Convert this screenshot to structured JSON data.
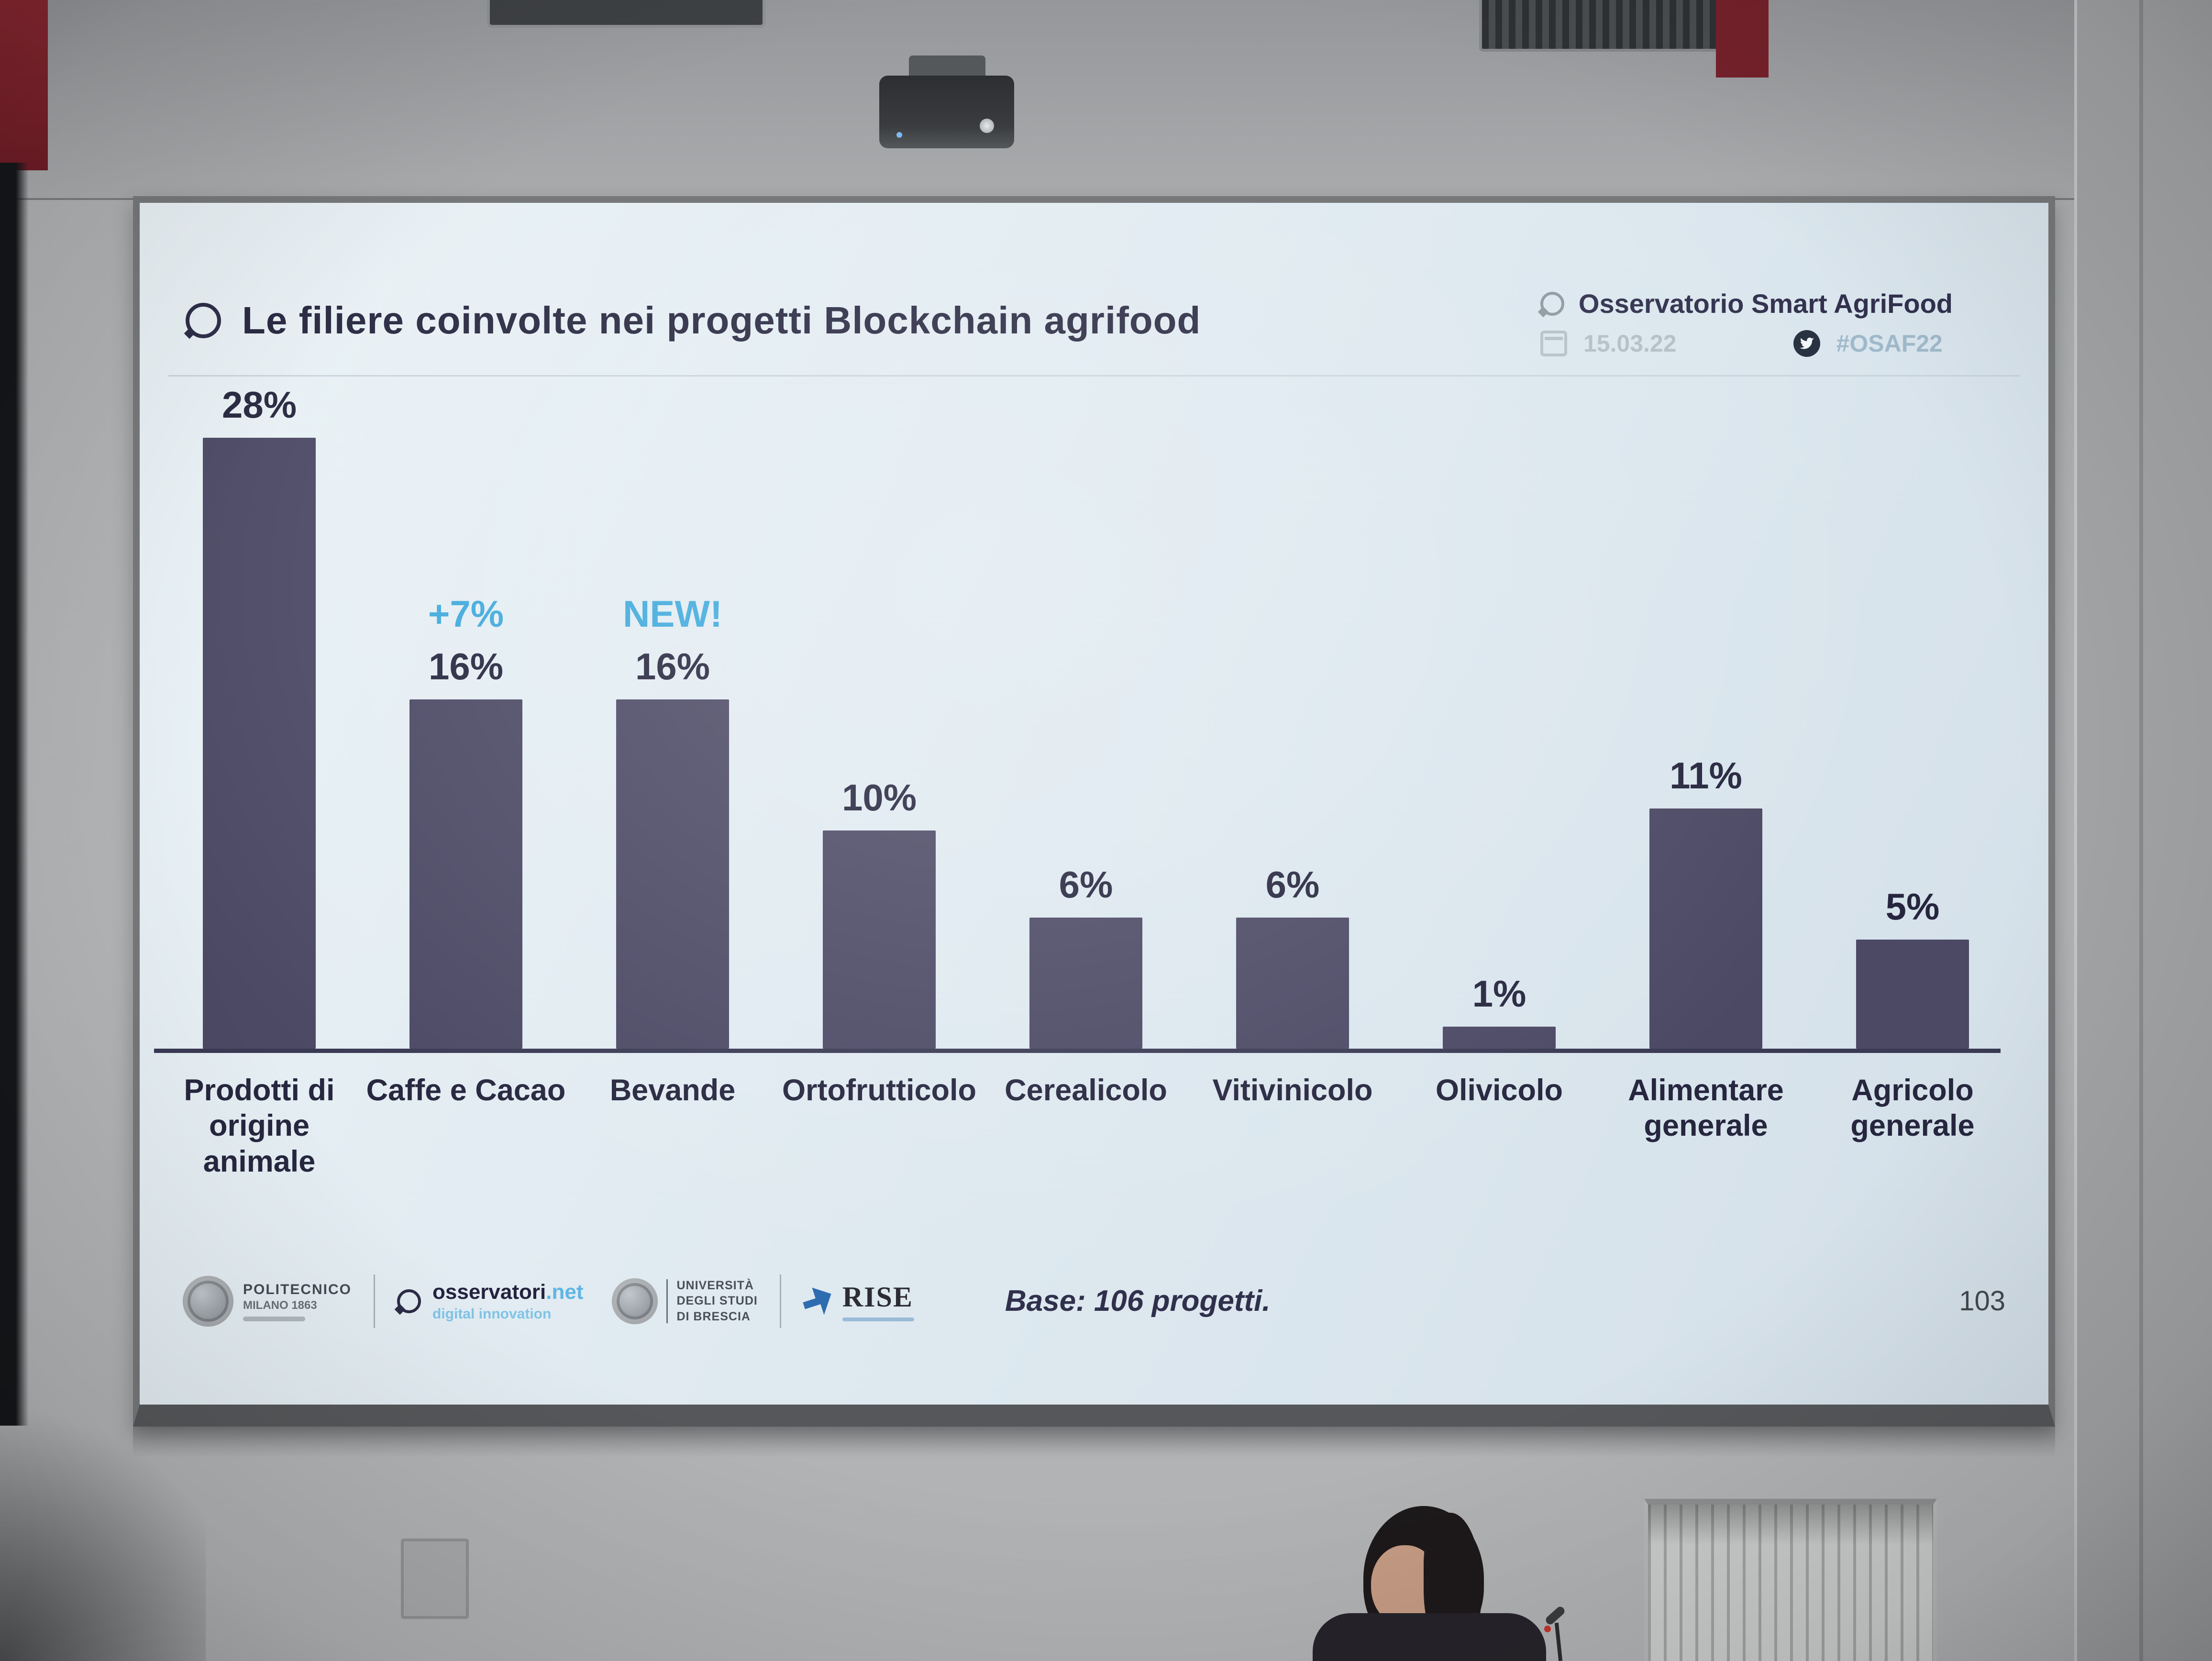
{
  "slide": {
    "title": "Le filiere coinvolte nei progetti Blockchain agrifood",
    "header_right": {
      "org": "Osservatorio Smart AgriFood",
      "date": "15.03.22",
      "hashtag": "#OSAF22"
    },
    "footer": {
      "polimi": {
        "line1": "POLITECNICO",
        "line2": "MILANO 1863"
      },
      "osservatori": {
        "brand": "osservatori",
        "tld": ".net",
        "tagline": "digital innovation"
      },
      "unibs": {
        "line1": "UNIVERSITÀ",
        "line2": "DEGLI STUDI",
        "line3": "DI BRESCIA"
      },
      "rise": {
        "brand": "RISE"
      },
      "page_number": "103"
    }
  },
  "chart_data": {
    "type": "bar",
    "title": "Le filiere coinvolte nei progetti Blockchain agrifood",
    "categories": [
      "Prodotti di origine animale",
      "Caffe e Cacao",
      "Bevande",
      "Ortofrutticolo",
      "Cerealicolo",
      "Vitivinicolo",
      "Olivicolo",
      "Alimentare generale",
      "Agricolo generale"
    ],
    "categories_display": [
      "Prodotti di\norigine\nanimale",
      "Caffe e Cacao",
      "Bevande",
      "Ortofrutticolo",
      "Cerealicolo",
      "Vitivinicolo",
      "Olivicolo",
      "Alimentare\ngenerale",
      "Agricolo\ngenerale"
    ],
    "values": [
      28,
      16,
      16,
      10,
      6,
      6,
      1,
      11,
      5
    ],
    "value_labels": [
      "28%",
      "16%",
      "16%",
      "10%",
      "6%",
      "6%",
      "1%",
      "11%",
      "5%"
    ],
    "annotations": [
      "",
      "+7%",
      "NEW!",
      "",
      "",
      "",
      "",
      "",
      ""
    ],
    "xlabel": "",
    "ylabel": "",
    "ylim": [
      0,
      30
    ],
    "grid": false,
    "legend": false,
    "bar_color": "#4c4965",
    "annotation_color": "#3fa9dc",
    "note": "Base: 106 progetti."
  }
}
